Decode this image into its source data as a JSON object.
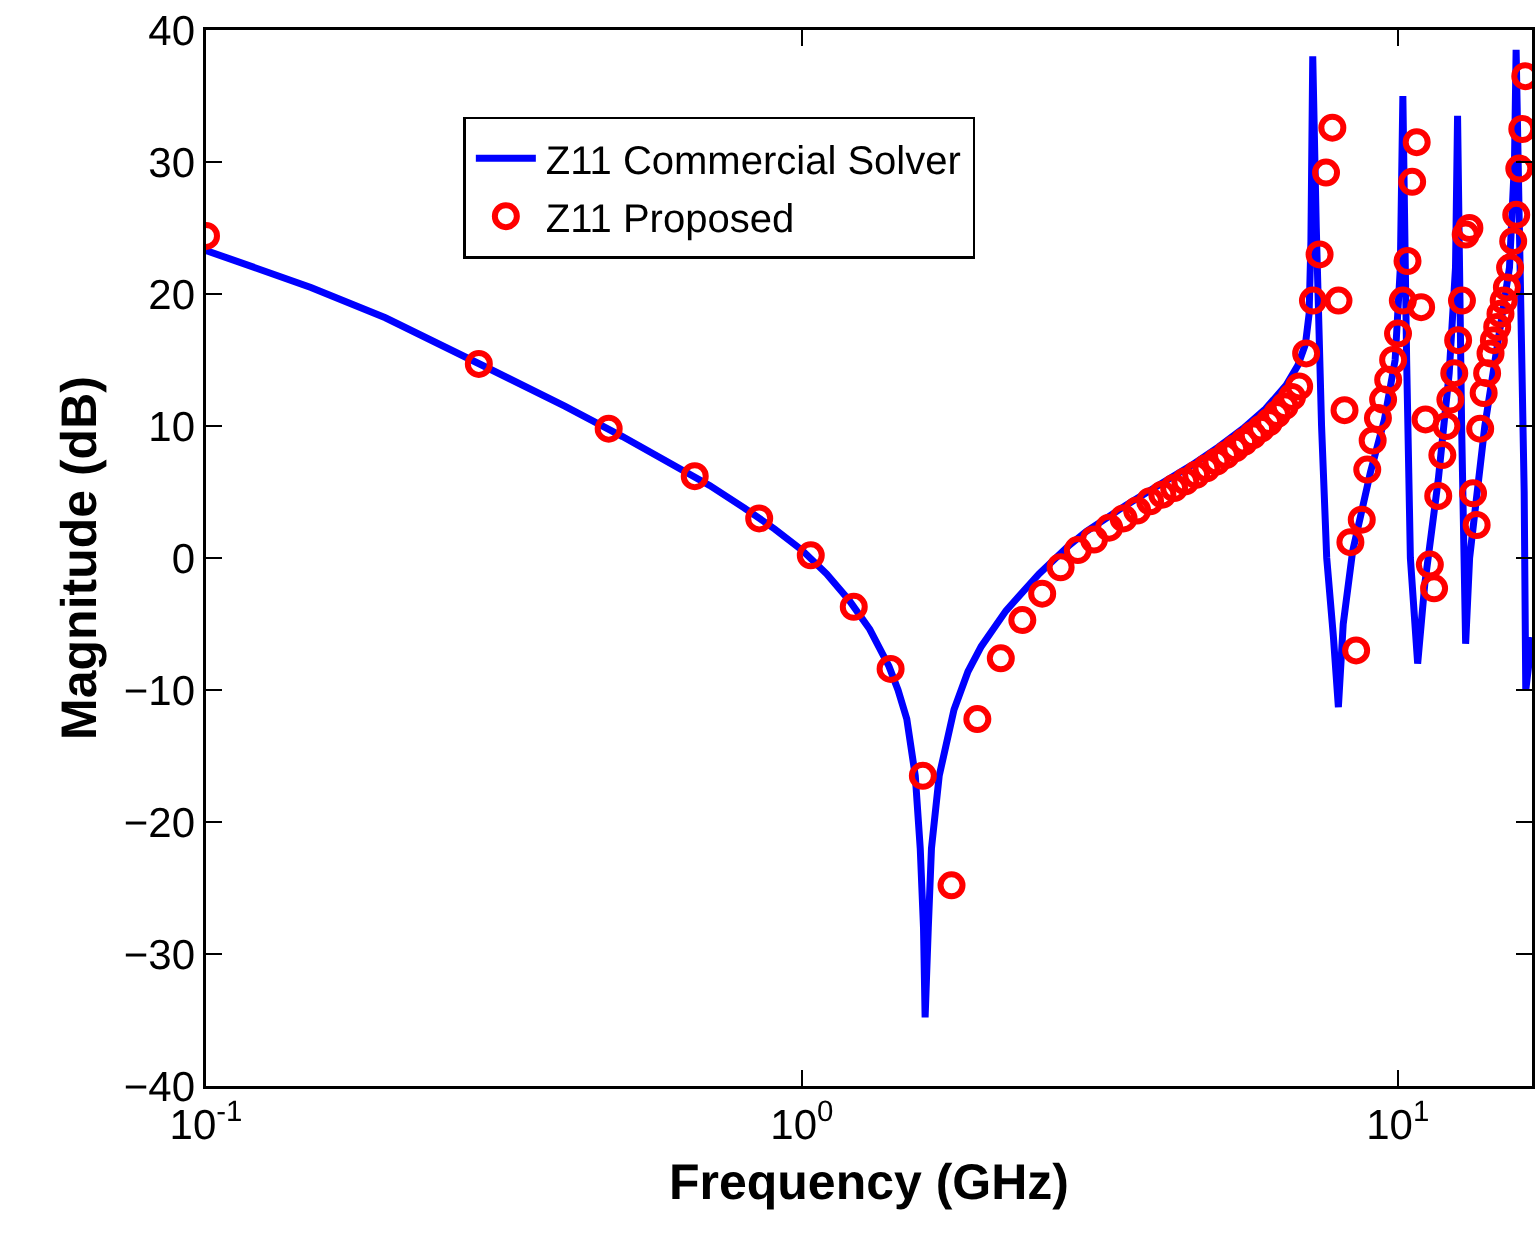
{
  "chart_data": {
    "type": "line",
    "xlabel": "Frequency (GHz)",
    "ylabel": "Magnitude (dB)",
    "log": "x",
    "grid": false,
    "legend": "top",
    "xlim": [
      0.1,
      16.8
    ],
    "xticks": [
      {
        "value": 0.1,
        "label": "10$^{-1}$"
      },
      {
        "value": 1,
        "label": "10$^{0}$"
      },
      {
        "value": 10,
        "label": "10$^{1}$"
      }
    ],
    "ylim": [
      -40,
      40
    ],
    "yticks": [
      {
        "value": -40,
        "label": "−40"
      },
      {
        "value": -30,
        "label": "−30"
      },
      {
        "value": -20,
        "label": "−20"
      },
      {
        "value": -10,
        "label": "−10"
      },
      0,
      10,
      20,
      30,
      40
    ],
    "series": [
      {
        "name": "Z11 Commercial Solver",
        "color": "#0000ff",
        "line_style": "solid",
        "marker": "none",
        "x": [
          0.1,
          0.15,
          0.2,
          0.3,
          0.4,
          0.5,
          0.6,
          0.7,
          0.8,
          0.9,
          1.0,
          1.1,
          1.2,
          1.3,
          1.4,
          1.45,
          1.5,
          1.55,
          1.58,
          1.6,
          1.61,
          1.63,
          1.65,
          1.7,
          1.8,
          1.9,
          2.0,
          2.2,
          2.5,
          2.8,
          3.0,
          3.5,
          4.0,
          4.5,
          5.0,
          5.5,
          6.0,
          6.5,
          6.8,
          7.0,
          7.1,
          7.15,
          7.2,
          7.3,
          7.45,
          7.6,
          7.8,
          7.95,
          8.1,
          8.4,
          9.0,
          9.5,
          9.9,
          10.1,
          10.2,
          10.35,
          10.5,
          10.8,
          11.1,
          11.7,
          12.2,
          12.5,
          12.6,
          12.8,
          13.0,
          13.2,
          14.0,
          14.8,
          15.4,
          15.7,
          15.8,
          16.0,
          16.3,
          16.4,
          16.6,
          16.8
        ],
        "values": [
          23.3,
          20.5,
          18.2,
          14.3,
          11.5,
          9.2,
          7.2,
          5.5,
          3.8,
          2.2,
          0.6,
          -1.2,
          -3.2,
          -5.4,
          -8.2,
          -10,
          -12.2,
          -16.5,
          -22,
          -28,
          -34.8,
          -28,
          -22,
          -16.5,
          -11.5,
          -8.6,
          -6.7,
          -4,
          -1.2,
          0.9,
          2.0,
          4.0,
          5.6,
          7.0,
          8.4,
          9.8,
          11.3,
          13.1,
          14.6,
          16.2,
          18.5,
          24,
          38,
          25,
          10,
          0,
          -6,
          -11.3,
          -5,
          0.5,
          6.5,
          10.5,
          15,
          22,
          35,
          15,
          0,
          -8,
          -2,
          6,
          14,
          22,
          33.5,
          10,
          -6.5,
          0,
          10,
          17,
          22,
          30,
          38.5,
          25,
          5,
          -10,
          -8,
          -6
        ]
      },
      {
        "name": "Z11 Proposed",
        "type": "scatter",
        "color": "#ff0000",
        "marker": "circle",
        "x": [
          0.1,
          0.287,
          0.474,
          0.661,
          0.848,
          1.035,
          1.222,
          1.409,
          1.596,
          1.783,
          1.97,
          2.157,
          2.344,
          2.531,
          2.718,
          2.905,
          3.092,
          3.279,
          3.466,
          3.653,
          3.84,
          4.027,
          4.214,
          4.401,
          4.588,
          4.775,
          4.962,
          5.149,
          5.336,
          5.523,
          5.71,
          5.897,
          6.084,
          6.271,
          6.458,
          6.645,
          6.832,
          7.019,
          7.206,
          7.393,
          7.58,
          7.767,
          7.954,
          8.141,
          8.328,
          8.515,
          8.702,
          8.889,
          9.076,
          9.263,
          9.45,
          9.637,
          9.824,
          10.011,
          10.198,
          10.385,
          10.572,
          10.759,
          10.946,
          11.133,
          11.32,
          11.507,
          11.694,
          11.881,
          12.068,
          12.255,
          12.442,
          12.629,
          12.816,
          13.003,
          13.19,
          13.377,
          13.564,
          13.751,
          13.938,
          14.125,
          14.312,
          14.499,
          14.686,
          14.873,
          15.06,
          15.247,
          15.434,
          15.621,
          15.808,
          15.995,
          16.182,
          16.369
        ],
        "values": [
          24.4,
          14.7,
          9.8,
          6.2,
          3.0,
          0.2,
          -3.7,
          -8.4,
          -16.5,
          -24.8,
          -12.2,
          -7.6,
          -4.7,
          -2.7,
          -0.7,
          0.6,
          1.4,
          2.3,
          3.0,
          3.6,
          4.3,
          4.8,
          5.3,
          5.8,
          6.3,
          6.8,
          7.3,
          7.8,
          8.3,
          8.8,
          9.3,
          9.8,
          10.3,
          10.9,
          11.5,
          12.2,
          13.0,
          15.5,
          19.5,
          23,
          29.2,
          32.6,
          19.5,
          11.2,
          1.2,
          -7.0,
          2.9,
          6.7,
          8.9,
          10.6,
          12,
          13.5,
          15,
          17,
          19.5,
          22.5,
          28.5,
          31.5,
          19,
          10.5,
          -0.5,
          -2.3,
          4.7,
          7.8,
          10,
          12,
          14,
          16.5,
          19.5,
          24.5,
          25,
          4.9,
          2.5,
          9.8,
          12.5,
          14,
          15.5,
          16.5,
          17.5,
          18.5,
          19.5,
          20.5,
          22,
          24,
          26,
          29.5,
          32.5,
          36.5
        ]
      }
    ]
  }
}
